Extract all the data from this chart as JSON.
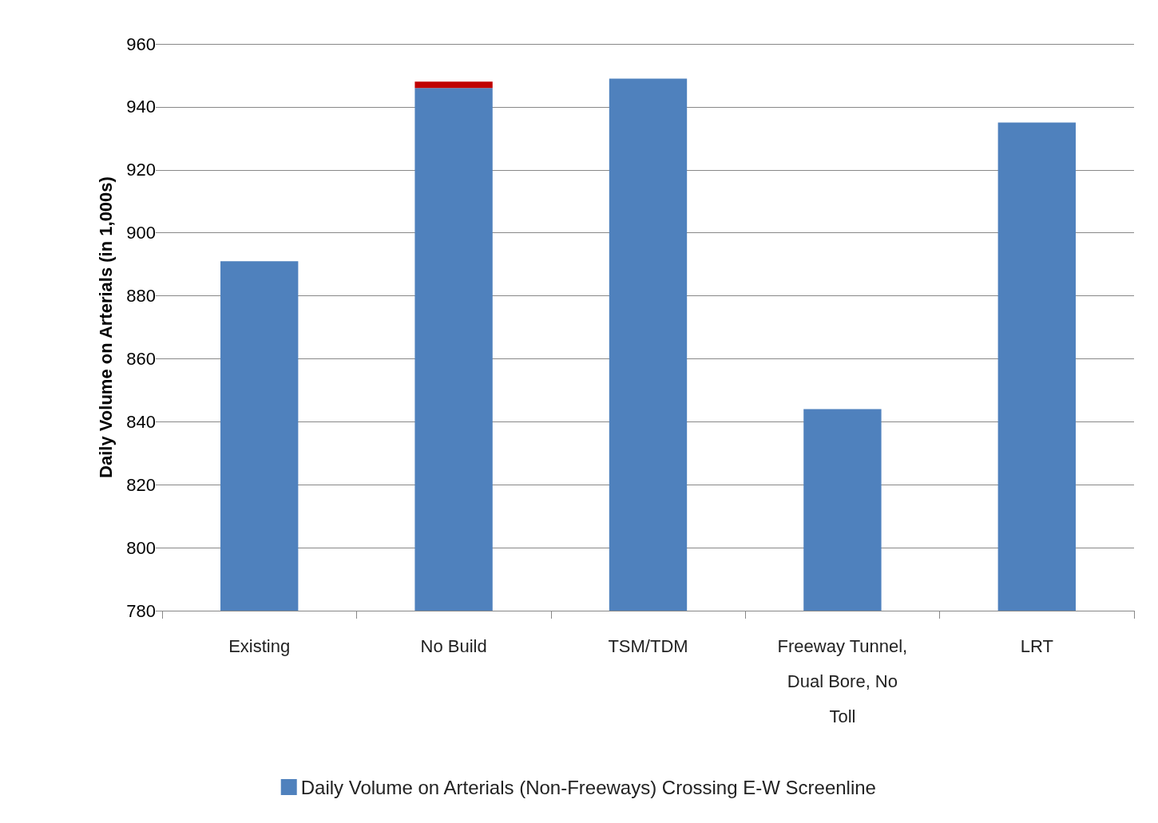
{
  "chart_data": {
    "type": "bar",
    "ylabel": "Daily Volume on Arterials (in 1,000s)",
    "categories": [
      "Existing",
      "No Build",
      "TSM/TDM",
      "Freeway Tunnel, Dual Bore, No Toll",
      "LRT"
    ],
    "series": [
      {
        "name": "Daily Volume on Arterials (Non-Freeways) Crossing E-W Screenline",
        "color": "#4f81bd",
        "values": [
          891,
          946,
          949,
          844,
          935
        ]
      },
      {
        "color": "#c00000",
        "values": [
          null,
          2,
          null,
          null,
          null
        ],
        "base": [
          null,
          946,
          null,
          null,
          null
        ]
      }
    ],
    "ylim": [
      780,
      960
    ],
    "yticks": [
      780,
      800,
      820,
      840,
      860,
      880,
      900,
      920,
      940,
      960
    ],
    "grid": "y",
    "legend": "bottom"
  }
}
